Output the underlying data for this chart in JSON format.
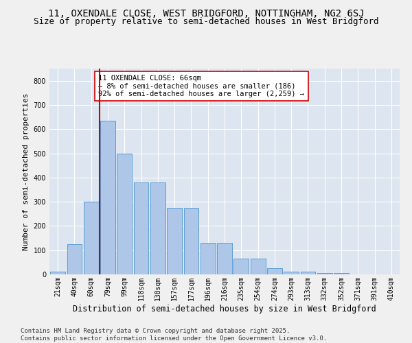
{
  "title1": "11, OXENDALE CLOSE, WEST BRIDGFORD, NOTTINGHAM, NG2 6SJ",
  "title2": "Size of property relative to semi-detached houses in West Bridgford",
  "xlabel": "Distribution of semi-detached houses by size in West Bridgford",
  "ylabel": "Number of semi-detached properties",
  "footnote": "Contains HM Land Registry data © Crown copyright and database right 2025.\nContains public sector information licensed under the Open Government Licence v3.0.",
  "categories": [
    "21sqm",
    "40sqm",
    "60sqm",
    "79sqm",
    "99sqm",
    "118sqm",
    "138sqm",
    "157sqm",
    "177sqm",
    "196sqm",
    "216sqm",
    "235sqm",
    "254sqm",
    "274sqm",
    "293sqm",
    "313sqm",
    "332sqm",
    "352sqm",
    "371sqm",
    "391sqm",
    "410sqm"
  ],
  "values": [
    10,
    125,
    300,
    635,
    500,
    380,
    380,
    275,
    275,
    130,
    130,
    65,
    65,
    25,
    10,
    10,
    5,
    5,
    0,
    0,
    0
  ],
  "bar_color": "#aec6e8",
  "bar_edge_color": "#5a9fd4",
  "property_line_color": "#cc0000",
  "annotation_text": "11 OXENDALE CLOSE: 66sqm\n← 8% of semi-detached houses are smaller (186)\n92% of semi-detached houses are larger (2,259) →",
  "annotation_box_color": "#ffffff",
  "annotation_box_edge_color": "#cc0000",
  "ylim": [
    0,
    850
  ],
  "background_color": "#dde5f0",
  "grid_color": "#ffffff",
  "title1_fontsize": 10,
  "title2_fontsize": 9,
  "xlabel_fontsize": 8.5,
  "ylabel_fontsize": 8,
  "tick_fontsize": 7,
  "annotation_fontsize": 7.5,
  "footnote_fontsize": 6.5
}
